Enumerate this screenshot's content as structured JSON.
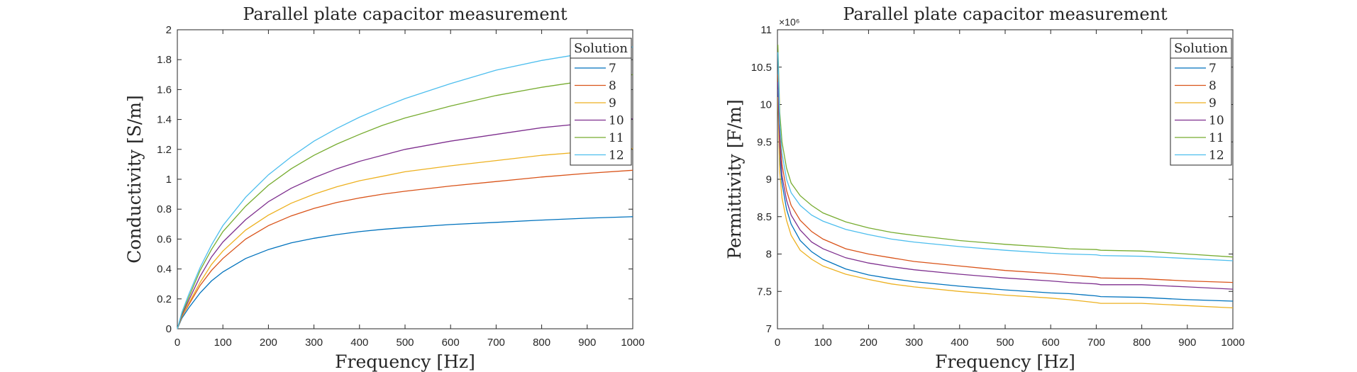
{
  "chart_data": [
    {
      "type": "line",
      "title": "Parallel plate capacitor measurement",
      "xlabel": "Frequency [Hz]",
      "ylabel": "Conductivity [S/m]",
      "xlim": [
        0,
        1000
      ],
      "ylim": [
        0,
        2
      ],
      "xticks": [
        0,
        100,
        200,
        300,
        400,
        500,
        600,
        700,
        800,
        900,
        1000
      ],
      "yticks": [
        0,
        0.2,
        0.4,
        0.6,
        0.8,
        1,
        1.2,
        1.4,
        1.6,
        1.8,
        2
      ],
      "ytick_labels": [
        "0",
        "0.2",
        "0.4",
        "0.6",
        "0.8",
        "1",
        "1.2",
        "1.4",
        "1.6",
        "1.8",
        "2"
      ],
      "exponent_label": "",
      "grid": false,
      "legend": {
        "title": "Solution",
        "placement": "top-right"
      },
      "x": [
        0,
        10,
        25,
        50,
        75,
        100,
        150,
        200,
        250,
        300,
        350,
        400,
        450,
        500,
        600,
        700,
        800,
        900,
        1000
      ],
      "series": [
        {
          "name": "7",
          "color": "#0072BD",
          "values": [
            0,
            0.07,
            0.14,
            0.24,
            0.32,
            0.38,
            0.47,
            0.53,
            0.575,
            0.605,
            0.63,
            0.65,
            0.665,
            0.677,
            0.697,
            0.712,
            0.727,
            0.74,
            0.75
          ]
        },
        {
          "name": "8",
          "color": "#D95319",
          "values": [
            0,
            0.08,
            0.16,
            0.29,
            0.39,
            0.47,
            0.6,
            0.69,
            0.755,
            0.805,
            0.845,
            0.875,
            0.9,
            0.92,
            0.955,
            0.985,
            1.015,
            1.04,
            1.06
          ]
        },
        {
          "name": "9",
          "color": "#EDB120",
          "values": [
            0,
            0.08,
            0.17,
            0.31,
            0.43,
            0.52,
            0.66,
            0.76,
            0.84,
            0.9,
            0.95,
            0.99,
            1.02,
            1.05,
            1.09,
            1.125,
            1.16,
            1.185,
            1.205
          ]
        },
        {
          "name": "10",
          "color": "#7E2F8E",
          "values": [
            0,
            0.09,
            0.19,
            0.35,
            0.48,
            0.58,
            0.73,
            0.85,
            0.94,
            1.01,
            1.07,
            1.12,
            1.16,
            1.2,
            1.255,
            1.3,
            1.345,
            1.375,
            1.405
          ]
        },
        {
          "name": "11",
          "color": "#77AC30",
          "values": [
            0,
            0.1,
            0.21,
            0.39,
            0.53,
            0.65,
            0.82,
            0.96,
            1.07,
            1.16,
            1.235,
            1.3,
            1.36,
            1.41,
            1.49,
            1.56,
            1.615,
            1.66,
            1.7
          ]
        },
        {
          "name": "12",
          "color": "#4DBEEE",
          "values": [
            0,
            0.11,
            0.23,
            0.41,
            0.56,
            0.69,
            0.88,
            1.03,
            1.15,
            1.255,
            1.34,
            1.415,
            1.48,
            1.54,
            1.64,
            1.73,
            1.795,
            1.845,
            1.885
          ]
        }
      ]
    },
    {
      "type": "line",
      "title": "Parallel plate capacitor measurement",
      "xlabel": "Frequency [Hz]",
      "ylabel": "Permittivity [F/m]",
      "xlim": [
        0,
        1000
      ],
      "ylim": [
        7,
        11
      ],
      "xticks": [
        0,
        100,
        200,
        300,
        400,
        500,
        600,
        700,
        800,
        900,
        1000
      ],
      "yticks": [
        7,
        7.5,
        8,
        8.5,
        9,
        9.5,
        10,
        10.5,
        11
      ],
      "ytick_labels": [
        "7",
        "7.5",
        "8",
        "8.5",
        "9",
        "9.5",
        "10",
        "10.5",
        "11"
      ],
      "exponent_label": "×10⁶",
      "grid": false,
      "legend": {
        "title": "Solution",
        "placement": "top-right"
      },
      "x": [
        1,
        5,
        10,
        20,
        30,
        50,
        75,
        100,
        150,
        200,
        250,
        300,
        400,
        500,
        600,
        640,
        700,
        710,
        800,
        900,
        1000
      ],
      "series": [
        {
          "name": "7",
          "color": "#0072BD",
          "values": [
            10.2,
            9.3,
            8.95,
            8.6,
            8.4,
            8.18,
            8.03,
            7.93,
            7.8,
            7.72,
            7.67,
            7.63,
            7.57,
            7.52,
            7.48,
            7.47,
            7.44,
            7.43,
            7.42,
            7.39,
            7.37
          ]
        },
        {
          "name": "8",
          "color": "#D95319",
          "values": [
            10.4,
            9.6,
            9.2,
            8.85,
            8.65,
            8.45,
            8.3,
            8.2,
            8.07,
            8.0,
            7.95,
            7.9,
            7.84,
            7.78,
            7.74,
            7.72,
            7.69,
            7.68,
            7.67,
            7.64,
            7.62
          ]
        },
        {
          "name": "9",
          "color": "#EDB120",
          "values": [
            10.1,
            9.1,
            8.75,
            8.45,
            8.25,
            8.05,
            7.93,
            7.84,
            7.73,
            7.66,
            7.6,
            7.56,
            7.5,
            7.45,
            7.41,
            7.39,
            7.35,
            7.34,
            7.34,
            7.31,
            7.28
          ]
        },
        {
          "name": "10",
          "color": "#7E2F8E",
          "values": [
            10.3,
            9.45,
            9.05,
            8.72,
            8.52,
            8.32,
            8.16,
            8.07,
            7.95,
            7.88,
            7.83,
            7.79,
            7.73,
            7.68,
            7.64,
            7.62,
            7.6,
            7.59,
            7.59,
            7.56,
            7.53
          ]
        },
        {
          "name": "11",
          "color": "#77AC30",
          "values": [
            10.8,
            9.9,
            9.5,
            9.15,
            8.95,
            8.78,
            8.65,
            8.55,
            8.43,
            8.35,
            8.29,
            8.25,
            8.18,
            8.13,
            8.09,
            8.07,
            8.06,
            8.05,
            8.04,
            8.0,
            7.96
          ]
        },
        {
          "name": "12",
          "color": "#4DBEEE",
          "values": [
            10.7,
            9.75,
            9.35,
            9.0,
            8.82,
            8.65,
            8.52,
            8.44,
            8.33,
            8.26,
            8.2,
            8.16,
            8.1,
            8.05,
            8.01,
            8.0,
            7.99,
            7.98,
            7.97,
            7.94,
            7.91
          ]
        }
      ]
    }
  ]
}
